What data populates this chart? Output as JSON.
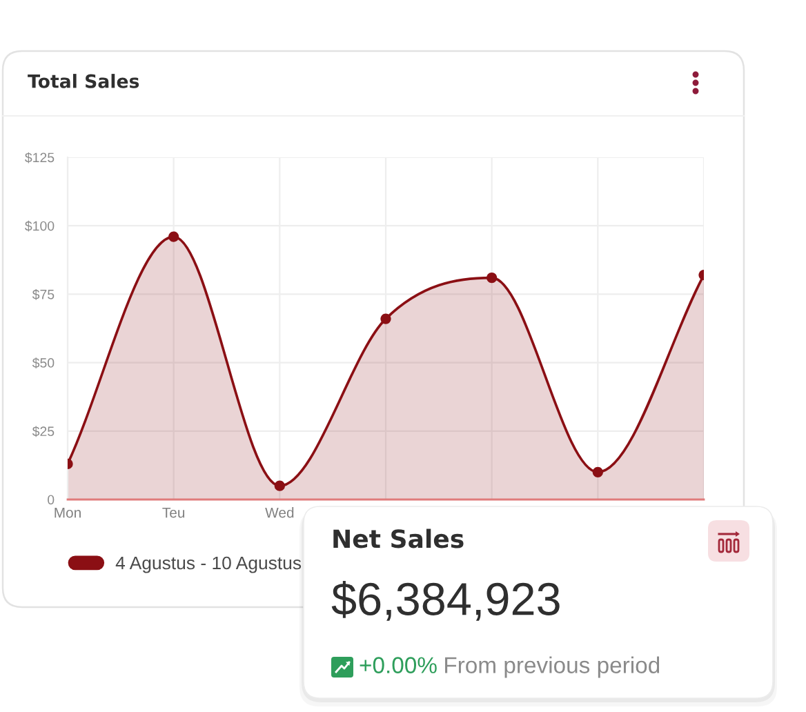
{
  "chart_data": [
    {
      "type": "area",
      "title": "Total Sales",
      "categories": [
        "Mon",
        "Teu",
        "Wed",
        null,
        null,
        null,
        null
      ],
      "series": [
        {
          "name": "4 Agustus - 10 Agustus",
          "color": "#8b0f14",
          "values": [
            13,
            96,
            5,
            66,
            81,
            10,
            82
          ]
        }
      ],
      "ylim": [
        0,
        125
      ],
      "yticks": [
        0,
        {
          "value": 25,
          "label": "$25"
        },
        {
          "value": 50,
          "label": "$50"
        },
        {
          "value": 75,
          "label": "$75"
        },
        {
          "value": 100,
          "label": "$100"
        },
        {
          "value": 125,
          "label": "$125"
        }
      ],
      "grid": true,
      "legend": "bottom",
      "marker": "circle",
      "line_style": "solid"
    },
    {
      "type": "other",
      "title": "Net Sales",
      "annotations": [
        "$6,384,923",
        "+0.00%",
        "From previous period"
      ]
    }
  ]
}
